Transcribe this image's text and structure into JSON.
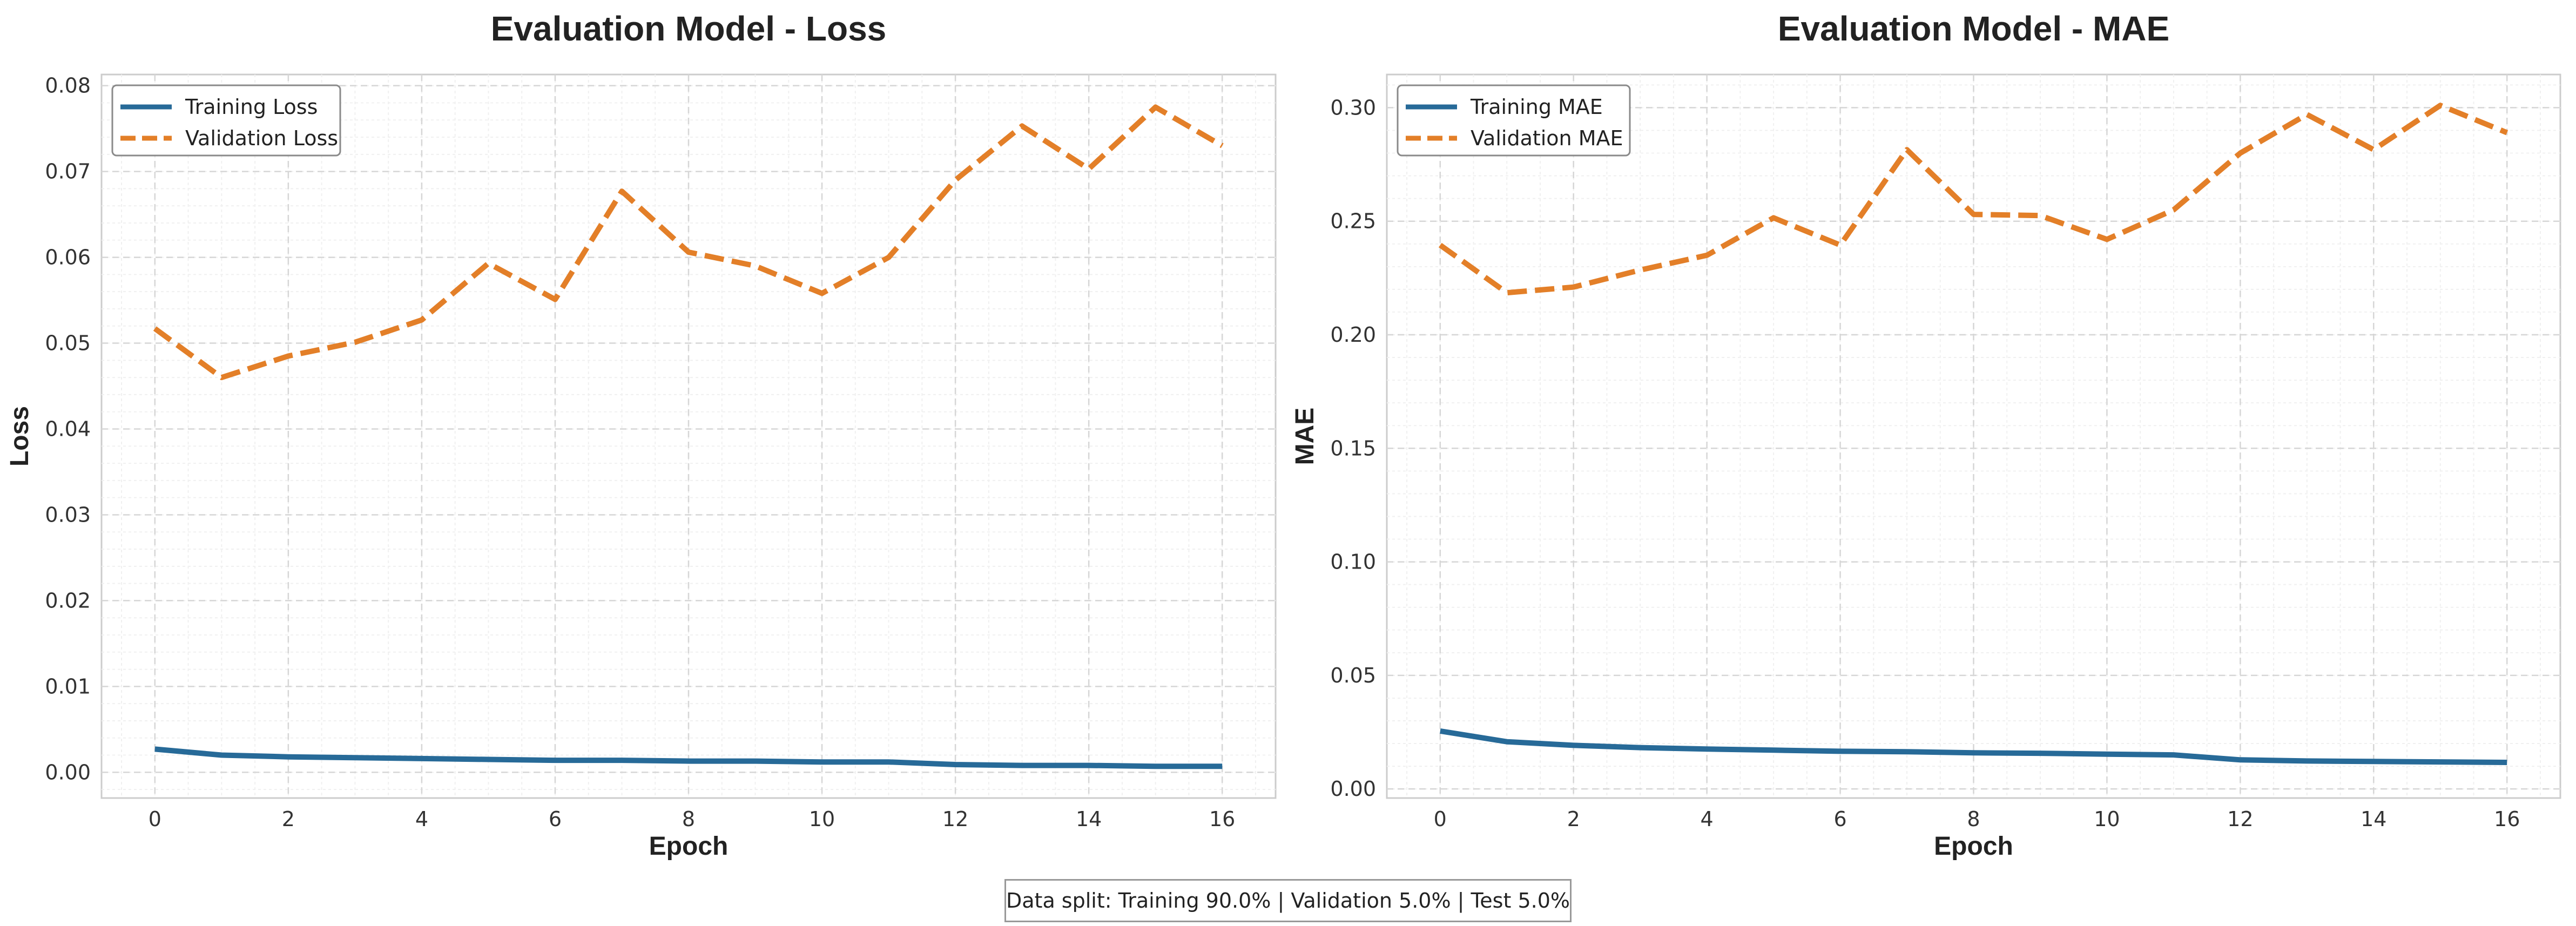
{
  "chart_data": [
    {
      "type": "line",
      "title": "Evaluation Model - Loss",
      "xlabel": "Epoch",
      "ylabel": "Loss",
      "x": [
        0,
        1,
        2,
        3,
        4,
        5,
        6,
        7,
        8,
        9,
        10,
        11,
        12,
        13,
        14,
        15,
        16
      ],
      "xlim": [
        -0.8,
        16.8
      ],
      "ylim": [
        -0.003,
        0.0813
      ],
      "xticks": [
        0,
        2,
        4,
        6,
        8,
        10,
        12,
        14,
        16
      ],
      "yticks": [
        0.0,
        0.01,
        0.02,
        0.03,
        0.04,
        0.05,
        0.06,
        0.07,
        0.08
      ],
      "ytick_labels": [
        "0.00",
        "0.01",
        "0.02",
        "0.03",
        "0.04",
        "0.05",
        "0.06",
        "0.07",
        "0.08"
      ],
      "grid": true,
      "legend_position": "top-left",
      "series": [
        {
          "name": "Training Loss",
          "style": "solid",
          "color": "#276a98",
          "values": [
            0.0027,
            0.002,
            0.0018,
            0.0017,
            0.0016,
            0.0015,
            0.0014,
            0.0014,
            0.0013,
            0.0013,
            0.0012,
            0.0012,
            0.0009,
            0.0008,
            0.0008,
            0.0007,
            0.0007
          ]
        },
        {
          "name": "Validation Loss",
          "style": "dashed",
          "color": "#e37f28",
          "values": [
            0.0517,
            0.046,
            0.0485,
            0.0501,
            0.0527,
            0.0593,
            0.0551,
            0.0677,
            0.0606,
            0.059,
            0.0558,
            0.06,
            0.069,
            0.0753,
            0.0703,
            0.0775,
            0.073
          ]
        }
      ]
    },
    {
      "type": "line",
      "title": "Evaluation Model - MAE",
      "xlabel": "Epoch",
      "ylabel": "MAE",
      "x": [
        0,
        1,
        2,
        3,
        4,
        5,
        6,
        7,
        8,
        9,
        10,
        11,
        12,
        13,
        14,
        15,
        16
      ],
      "xlim": [
        -0.8,
        16.8
      ],
      "ylim": [
        -0.004,
        0.3146
      ],
      "xticks": [
        0,
        2,
        4,
        6,
        8,
        10,
        12,
        14,
        16
      ],
      "yticks": [
        0.0,
        0.05,
        0.1,
        0.15,
        0.2,
        0.25,
        0.3
      ],
      "ytick_labels": [
        "0.00",
        "0.05",
        "0.10",
        "0.15",
        "0.20",
        "0.25",
        "0.30"
      ],
      "grid": true,
      "legend_position": "top-left",
      "series": [
        {
          "name": "Training MAE",
          "style": "solid",
          "color": "#276a98",
          "values": [
            0.0255,
            0.0208,
            0.0192,
            0.0182,
            0.0176,
            0.0171,
            0.0166,
            0.0164,
            0.0159,
            0.0157,
            0.0153,
            0.015,
            0.0128,
            0.0123,
            0.0121,
            0.0119,
            0.0117
          ]
        },
        {
          "name": "Validation MAE",
          "style": "dashed",
          "color": "#e37f28",
          "values": [
            0.2395,
            0.2185,
            0.221,
            0.2285,
            0.235,
            0.2515,
            0.2395,
            0.2815,
            0.253,
            0.2525,
            0.242,
            0.255,
            0.28,
            0.297,
            0.2815,
            0.301,
            0.289
          ]
        }
      ]
    }
  ],
  "footnote": "Data split: Training 90.0% | Validation 5.0% | Test 5.0%"
}
